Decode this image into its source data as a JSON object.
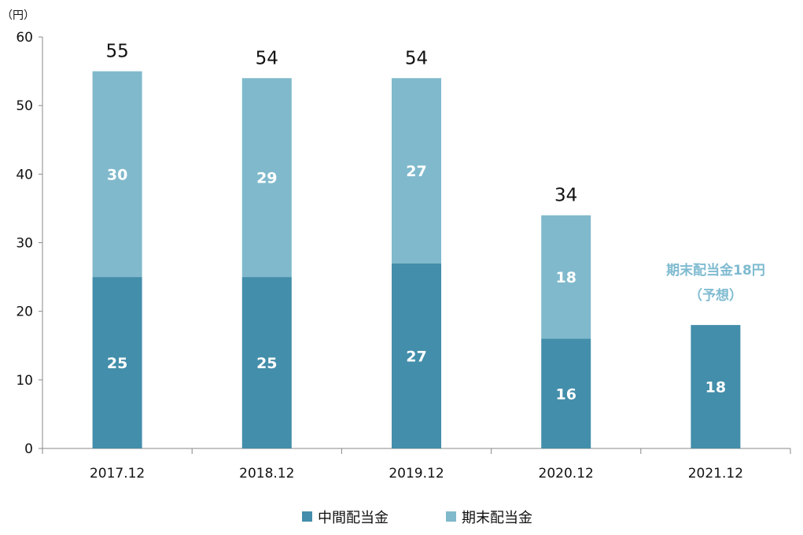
{
  "chart_data": {
    "type": "bar",
    "stacked": true,
    "unit_label": "（円）",
    "categories": [
      "2017.12",
      "2018.12",
      "2019.12",
      "2020.12",
      "2021.12"
    ],
    "series": [
      {
        "name": "中間配当金",
        "color": "#438eaa",
        "values": [
          25,
          25,
          27,
          16,
          18
        ]
      },
      {
        "name": "期末配当金",
        "color": "#80b9cc",
        "values": [
          30,
          29,
          27,
          18,
          null
        ]
      }
    ],
    "totals": [
      "55",
      "54",
      "54",
      "34",
      ""
    ],
    "inner_labels": [
      [
        "25",
        "25",
        "27",
        "16",
        "18"
      ],
      [
        "30",
        "29",
        "27",
        "18",
        ""
      ]
    ],
    "yticks": [
      "0",
      "10",
      "20",
      "30",
      "40",
      "50",
      "60"
    ],
    "ylim": [
      0,
      60
    ],
    "annotation": {
      "line1": "期末配当金18円",
      "line2": "（予想）",
      "color": "#7fbbd0"
    },
    "legend_position": "bottom"
  }
}
